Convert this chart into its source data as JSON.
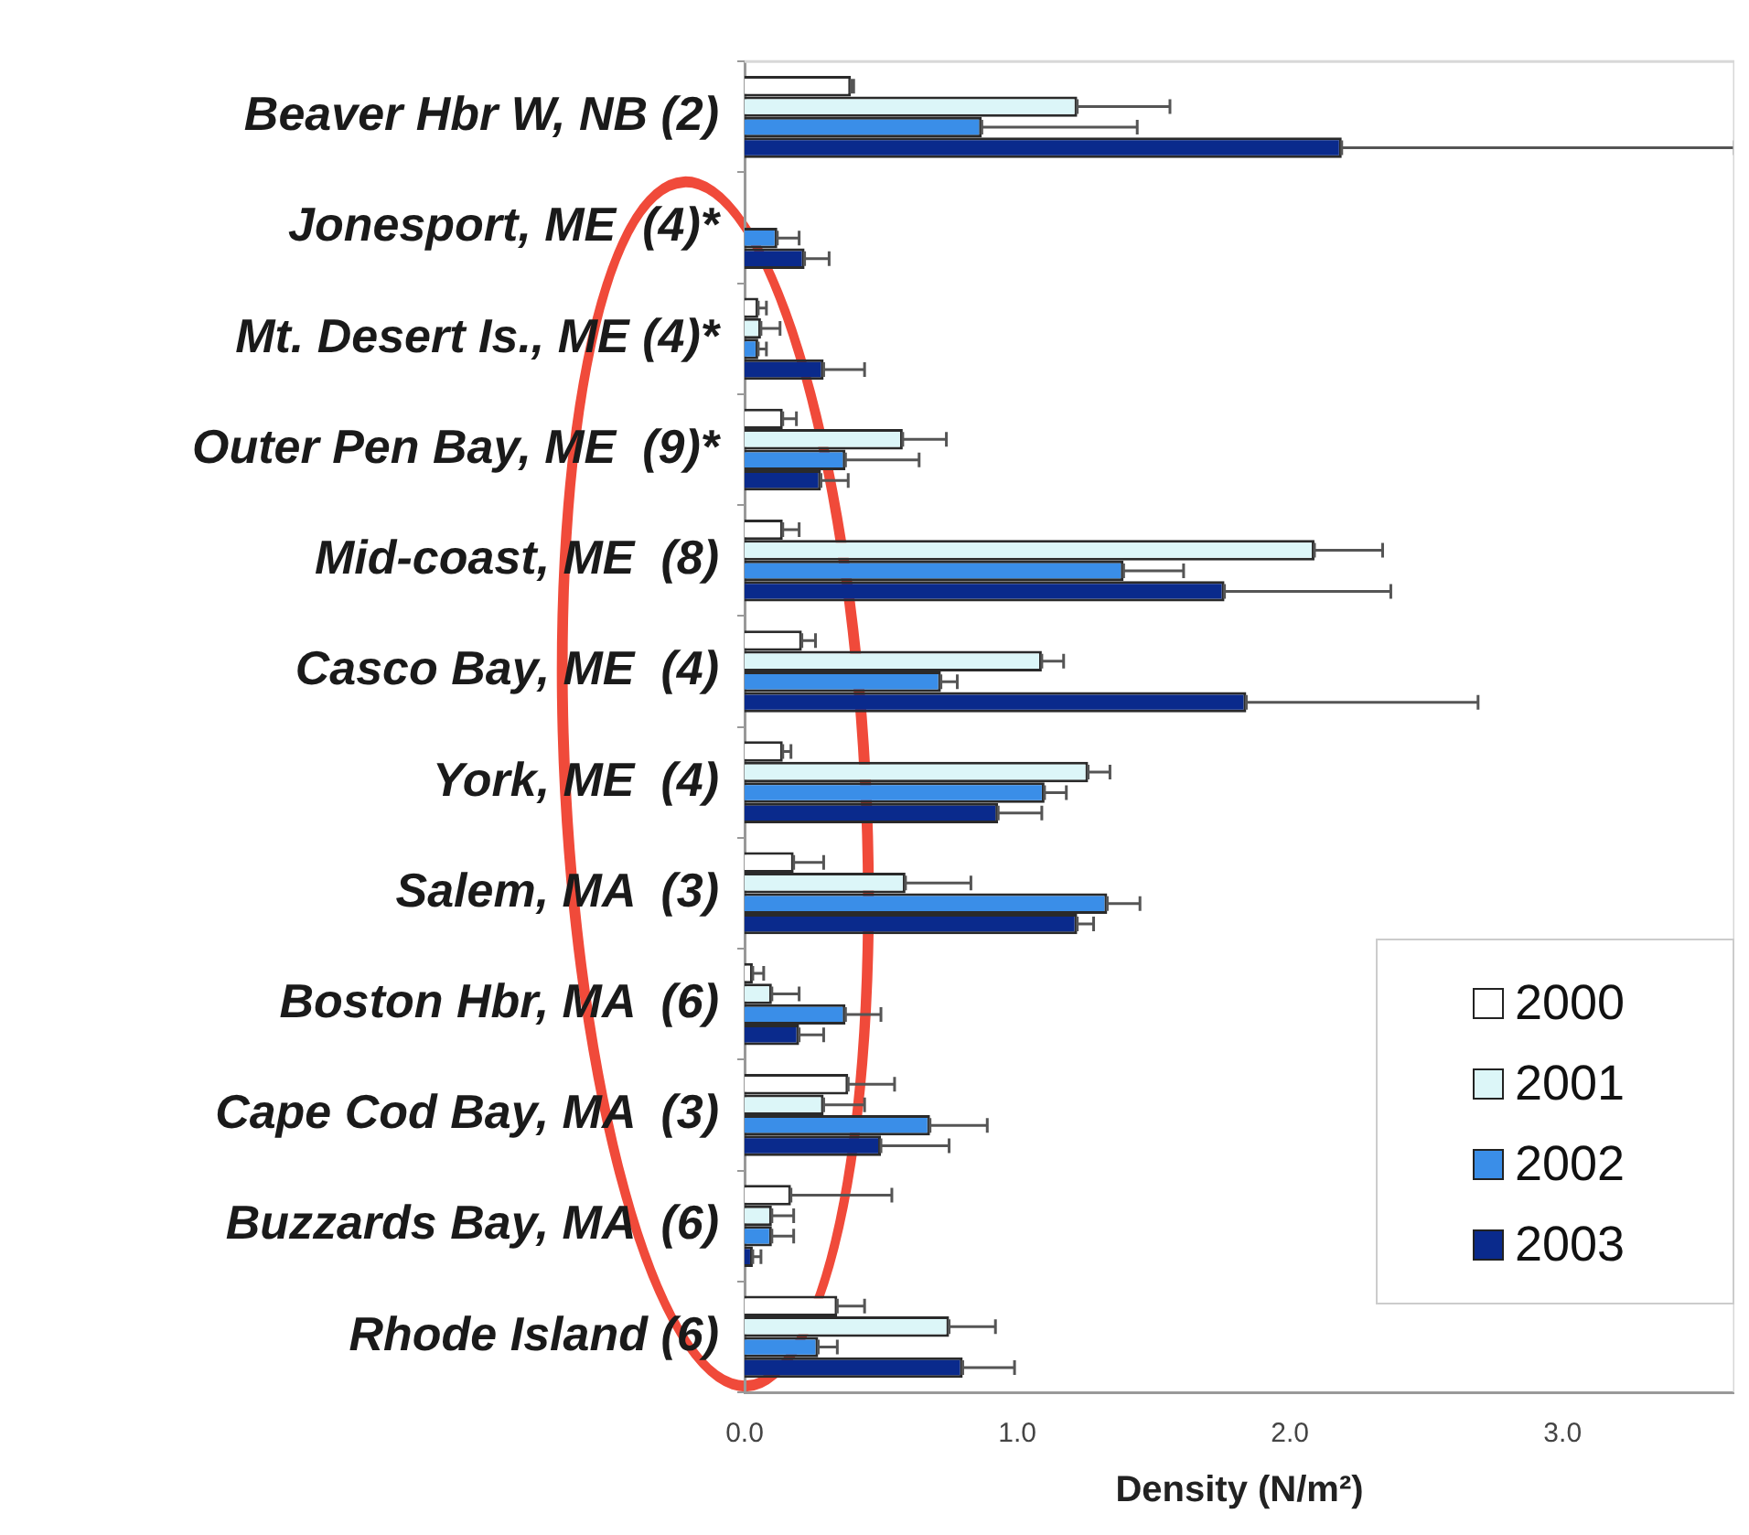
{
  "chart_data": {
    "type": "bar",
    "orientation": "horizontal",
    "xlabel": "Density (N/m²)",
    "legend": "bottom right",
    "categories": [
      "Beaver Hbr W, NB (2)",
      "Jonesport, ME  (4)*",
      "Mt. Desert Is., ME (4)*",
      "Outer Pen Bay, ME  (9)*",
      "Mid-coast, ME  (8)",
      "Casco Bay, ME  (4)",
      "York, ME  (4)",
      "Salem, MA  (3)",
      "Boston Hbr, MA  (6)",
      "Cape Cod Bay, MA  (3)",
      "Buzzards Bay, MA  (6)",
      "Rhode Island (6)"
    ],
    "xlim": [
      0,
      3.63
    ],
    "xticks": [
      {
        "value": 0,
        "label": "0.0"
      },
      {
        "value": 1,
        "label": "1.0"
      },
      {
        "value": 2,
        "label": "2.0"
      },
      {
        "value": 3,
        "label": "3.0"
      }
    ],
    "series": [
      {
        "name": "2000",
        "color": "#ffffff",
        "values": [
          0.39,
          0,
          0.05,
          0.14,
          0.14,
          0.21,
          0.14,
          0.18,
          0.03,
          0.38,
          0.17,
          0.34
        ],
        "errors": [
          [
            0.39,
            0.4
          ],
          null,
          [
            0.05,
            0.08
          ],
          [
            0.14,
            0.19
          ],
          [
            0.14,
            0.2
          ],
          [
            0.21,
            0.26
          ],
          [
            0.14,
            0.17
          ],
          [
            0.18,
            0.29
          ],
          [
            0.03,
            0.07
          ],
          [
            0.38,
            0.55
          ],
          [
            0.17,
            0.54
          ],
          [
            0.34,
            0.44
          ]
        ]
      },
      {
        "name": "2001",
        "color": "#dcf6f8",
        "values": [
          1.22,
          0,
          0.06,
          0.58,
          2.09,
          1.09,
          1.26,
          0.59,
          0.1,
          0.29,
          0.1,
          0.75
        ],
        "errors": [
          [
            1.22,
            1.56
          ],
          null,
          [
            0.06,
            0.13
          ],
          [
            0.58,
            0.74
          ],
          [
            2.09,
            2.34
          ],
          [
            1.09,
            1.17
          ],
          [
            1.26,
            1.34
          ],
          [
            0.59,
            0.83
          ],
          [
            0.1,
            0.2
          ],
          [
            0.29,
            0.44
          ],
          [
            0.1,
            0.18
          ],
          [
            0.75,
            0.92
          ]
        ]
      },
      {
        "name": "2002",
        "color": "#3a8ee8",
        "values": [
          0.87,
          0.12,
          0.05,
          0.37,
          1.39,
          0.72,
          1.1,
          1.33,
          0.37,
          0.68,
          0.1,
          0.27
        ],
        "errors": [
          [
            0.87,
            1.44
          ],
          [
            0.12,
            0.2
          ],
          [
            0.05,
            0.08
          ],
          [
            0.37,
            0.64
          ],
          [
            1.39,
            1.61
          ],
          [
            0.72,
            0.78
          ],
          [
            1.1,
            1.18
          ],
          [
            1.33,
            1.45
          ],
          [
            0.37,
            0.5
          ],
          [
            0.68,
            0.89
          ],
          [
            0.1,
            0.18
          ],
          [
            0.27,
            0.34
          ]
        ]
      },
      {
        "name": "2003",
        "color": "#0a2a8c",
        "values": [
          2.19,
          0.22,
          0.29,
          0.28,
          1.76,
          1.84,
          0.93,
          1.22,
          0.2,
          0.5,
          0.03,
          0.8
        ],
        "errors": [
          [
            2.19,
            3.63
          ],
          [
            0.22,
            0.31
          ],
          [
            0.29,
            0.44
          ],
          [
            0.28,
            0.38
          ],
          [
            1.76,
            2.37
          ],
          [
            1.84,
            2.69
          ],
          [
            0.93,
            1.09
          ],
          [
            1.22,
            1.28
          ],
          [
            0.2,
            0.29
          ],
          [
            0.5,
            0.75
          ],
          [
            0.03,
            0.06
          ],
          [
            0.8,
            0.99
          ]
        ]
      }
    ]
  }
}
